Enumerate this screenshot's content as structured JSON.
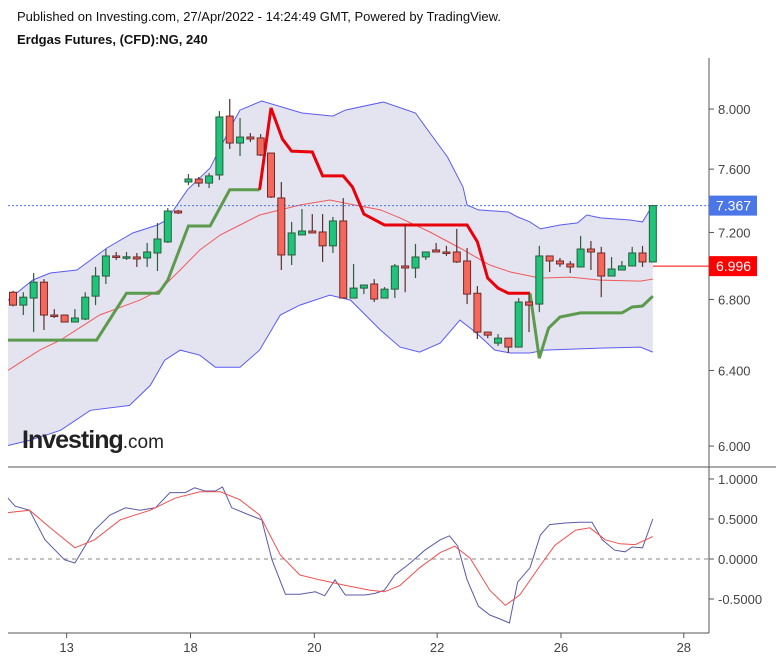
{
  "header": {
    "published": "Published on Investing.com, 27/Apr/2022 - 14:24:49 GMT, Powered by TradingView.",
    "title": "Erdgas Futures, (CFD):NG, 240"
  },
  "logo": {
    "main": "Investing",
    "suffix": ".com"
  },
  "colors": {
    "up": "#1ec47a",
    "down": "#f4675a",
    "band_fill": "#e4e4f0",
    "band_line": "#5b5bf0",
    "ma": "#f05a5a",
    "supertrend_up": "#5c9a4e",
    "supertrend_down": "#e8000b",
    "osc_main": "#5a5aa8",
    "osc_signal": "#f05050",
    "last_price": "#4a76e8",
    "marker_price": "#ff0000"
  },
  "chart_data": [
    {
      "type": "candlestick",
      "scale": "log",
      "ylim": [
        5.95,
        8.3
      ],
      "y_ticks": [
        "8.000",
        "7.600",
        "7.200",
        "6.800",
        "6.400",
        "6.000"
      ],
      "x_ticks": [
        "13",
        "18",
        "20",
        "22",
        "26",
        "28"
      ],
      "last_price_label": "7.367",
      "marker_price_label": "6.996",
      "last_price": 7.367,
      "marker_price": 6.996,
      "ohlc": [
        [
          6.842,
          6.85,
          6.76,
          6.767
        ],
        [
          6.767,
          6.842,
          6.71,
          6.813
        ],
        [
          6.808,
          6.955,
          6.613,
          6.901
        ],
        [
          6.901,
          6.919,
          6.625,
          6.71
        ],
        [
          6.71,
          6.744,
          6.693,
          6.708
        ],
        [
          6.71,
          6.712,
          6.67,
          6.67
        ],
        [
          6.67,
          6.744,
          6.668,
          6.693
        ],
        [
          6.687,
          6.842,
          6.681,
          6.813
        ],
        [
          6.819,
          6.991,
          6.767,
          6.937
        ],
        [
          6.937,
          7.099,
          6.89,
          7.057
        ],
        [
          7.057,
          7.081,
          7.033,
          7.051
        ],
        [
          7.051,
          7.081,
          7.033,
          7.052
        ],
        [
          7.051,
          7.075,
          6.991,
          7.039
        ],
        [
          7.045,
          7.136,
          6.991,
          7.081
        ],
        [
          7.075,
          7.259,
          6.967,
          7.16
        ],
        [
          7.142,
          7.352,
          7.136,
          7.333
        ],
        [
          7.333,
          7.34,
          7.314,
          7.321
        ],
        [
          7.517,
          7.568,
          7.497,
          7.536
        ],
        [
          7.536,
          7.549,
          7.485,
          7.51
        ],
        [
          7.51,
          7.575,
          7.478,
          7.556
        ],
        [
          7.562,
          7.986,
          7.53,
          7.946
        ],
        [
          7.952,
          8.069,
          7.732,
          7.771
        ],
        [
          7.771,
          7.939,
          7.686,
          7.811
        ],
        [
          7.811,
          7.838,
          7.778,
          7.798
        ],
        [
          7.805,
          7.831,
          7.686,
          7.692
        ],
        [
          7.705,
          7.705,
          7.415,
          7.421
        ],
        [
          7.415,
          7.517,
          6.973,
          7.063
        ],
        [
          7.063,
          7.265,
          7.003,
          7.197
        ],
        [
          7.185,
          7.346,
          7.185,
          7.209
        ],
        [
          7.209,
          7.314,
          7.197,
          7.197
        ],
        [
          7.203,
          7.314,
          7.021,
          7.118
        ],
        [
          7.118,
          7.296,
          7.075,
          7.271
        ],
        [
          7.271,
          7.415,
          6.808,
          6.808
        ],
        [
          6.808,
          7.009,
          6.808,
          6.866
        ],
        [
          6.866,
          6.884,
          6.831,
          6.884
        ],
        [
          6.89,
          6.919,
          6.785,
          6.802
        ],
        [
          6.808,
          6.872,
          6.808,
          6.86
        ],
        [
          6.86,
          7.009,
          6.808,
          6.997
        ],
        [
          6.997,
          7.252,
          6.842,
          6.985
        ],
        [
          6.985,
          7.13,
          6.925,
          7.051
        ],
        [
          7.051,
          7.081,
          7.033,
          7.081
        ],
        [
          7.093,
          7.136,
          7.081,
          7.081
        ],
        [
          7.081,
          7.118,
          7.057,
          7.075
        ],
        [
          7.081,
          7.222,
          7.015,
          7.021
        ],
        [
          7.027,
          7.105,
          6.773,
          6.831
        ],
        [
          6.836,
          6.878,
          6.574,
          6.613
        ],
        [
          6.613,
          6.615,
          6.579,
          6.596
        ],
        [
          6.551,
          6.602,
          6.535,
          6.579
        ],
        [
          6.579,
          6.58,
          6.496,
          6.529
        ],
        [
          6.529,
          6.808,
          6.529,
          6.785
        ],
        [
          6.785,
          6.836,
          6.613,
          6.767
        ],
        [
          6.773,
          7.118,
          6.727,
          7.057
        ],
        [
          7.057,
          7.06,
          6.961,
          7.027
        ],
        [
          7.027,
          7.045,
          6.991,
          7.009
        ],
        [
          7.009,
          7.027,
          6.955,
          6.991
        ],
        [
          6.991,
          7.179,
          6.991,
          7.099
        ],
        [
          7.099,
          7.148,
          6.973,
          7.081
        ],
        [
          7.075,
          7.112,
          6.813,
          6.937
        ],
        [
          6.937,
          7.051,
          6.937,
          6.979
        ],
        [
          6.973,
          7.027,
          6.973,
          6.997
        ],
        [
          6.997,
          7.112,
          6.997,
          7.075
        ],
        [
          7.075,
          7.118,
          6.991,
          7.021
        ],
        [
          7.021,
          7.367,
          7.021,
          7.367
        ]
      ],
      "bollinger_upper": [
        [
          -0.5,
          6.796
        ],
        [
          1.9,
          6.913
        ],
        [
          3.6,
          6.955
        ],
        [
          6.2,
          6.973
        ],
        [
          9.1,
          7.105
        ],
        [
          11.6,
          7.197
        ],
        [
          14.0,
          7.246
        ],
        [
          14.9,
          7.277
        ],
        [
          16.9,
          7.467
        ],
        [
          19.1,
          7.607
        ],
        [
          21.3,
          7.905
        ],
        [
          22.0,
          7.993
        ],
        [
          24.1,
          8.055
        ],
        [
          28.0,
          7.973
        ],
        [
          31.0,
          7.952
        ],
        [
          32.2,
          7.993
        ],
        [
          35.9,
          8.048
        ],
        [
          39.0,
          7.973
        ],
        [
          40.4,
          7.838
        ],
        [
          42.1,
          7.679
        ],
        [
          43.6,
          7.485
        ],
        [
          44.0,
          7.371
        ],
        [
          45.1,
          7.34
        ],
        [
          48.0,
          7.327
        ],
        [
          48.9,
          7.296
        ],
        [
          50.1,
          7.265
        ],
        [
          51.1,
          7.222
        ],
        [
          53.0,
          7.246
        ],
        [
          54.7,
          7.259
        ],
        [
          55.6,
          7.308
        ],
        [
          56.9,
          7.29
        ],
        [
          59.8,
          7.277
        ],
        [
          61.0,
          7.265
        ],
        [
          62.0,
          7.371
        ]
      ],
      "bollinger_lower": [
        [
          -0.5,
          6.003
        ],
        [
          1.6,
          6.029
        ],
        [
          4.6,
          6.081
        ],
        [
          7.5,
          6.186
        ],
        [
          11.3,
          6.212
        ],
        [
          13.3,
          6.319
        ],
        [
          14.7,
          6.456
        ],
        [
          16.2,
          6.512
        ],
        [
          18.1,
          6.484
        ],
        [
          19.6,
          6.418
        ],
        [
          22.0,
          6.418
        ],
        [
          23.9,
          6.512
        ],
        [
          25.9,
          6.71
        ],
        [
          27.8,
          6.767
        ],
        [
          30.7,
          6.825
        ],
        [
          32.7,
          6.796
        ],
        [
          35.6,
          6.625
        ],
        [
          37.5,
          6.529
        ],
        [
          39.4,
          6.501
        ],
        [
          41.4,
          6.551
        ],
        [
          43.3,
          6.681
        ],
        [
          44.8,
          6.613
        ],
        [
          46.7,
          6.512
        ],
        [
          48.2,
          6.496
        ],
        [
          50.1,
          6.496
        ],
        [
          51.5,
          6.512
        ],
        [
          56.9,
          6.523
        ],
        [
          60.8,
          6.529
        ],
        [
          62.0,
          6.501
        ]
      ],
      "bollinger_basis": [
        [
          -0.5,
          6.401
        ],
        [
          2.6,
          6.512
        ],
        [
          4.6,
          6.568
        ],
        [
          8.4,
          6.71
        ],
        [
          12.3,
          6.796
        ],
        [
          14.2,
          6.854
        ],
        [
          16.2,
          6.973
        ],
        [
          18.1,
          7.093
        ],
        [
          20.1,
          7.185
        ],
        [
          22.0,
          7.246
        ],
        [
          23.9,
          7.308
        ],
        [
          25.9,
          7.34
        ],
        [
          27.8,
          7.371
        ],
        [
          30.7,
          7.402
        ],
        [
          33.1,
          7.371
        ],
        [
          35.6,
          7.34
        ],
        [
          37.5,
          7.29
        ],
        [
          40.4,
          7.203
        ],
        [
          43.3,
          7.105
        ],
        [
          46.2,
          7.003
        ],
        [
          48.2,
          6.961
        ],
        [
          51.1,
          6.925
        ],
        [
          54.0,
          6.931
        ],
        [
          56.9,
          6.913
        ],
        [
          60.8,
          6.907
        ],
        [
          62.0,
          6.919
        ]
      ],
      "supertrend_up_1": [
        [
          -0.5,
          6.568
        ],
        [
          8.1,
          6.568
        ],
        [
          11.0,
          6.836
        ],
        [
          14.1,
          6.836
        ],
        [
          15.0,
          6.913
        ],
        [
          17.0,
          7.24
        ],
        [
          19.1,
          7.24
        ],
        [
          21.0,
          7.467
        ],
        [
          23.9,
          7.467
        ]
      ],
      "supertrend_down": [
        [
          23.9,
          7.467
        ],
        [
          25.0,
          8.007
        ],
        [
          26.1,
          7.798
        ],
        [
          27.0,
          7.718
        ],
        [
          29.0,
          7.712
        ],
        [
          30.0,
          7.556
        ],
        [
          32.0,
          7.556
        ],
        [
          32.9,
          7.485
        ],
        [
          34.0,
          7.314
        ],
        [
          36.0,
          7.246
        ],
        [
          44.0,
          7.246
        ],
        [
          45.0,
          7.142
        ],
        [
          46.0,
          6.925
        ],
        [
          47.0,
          6.866
        ],
        [
          48.0,
          6.836
        ],
        [
          50.1,
          6.836
        ]
      ],
      "supertrend_up_2": [
        [
          50.1,
          6.836
        ],
        [
          51.0,
          6.467
        ],
        [
          51.9,
          6.636
        ],
        [
          53.0,
          6.699
        ],
        [
          55.0,
          6.722
        ],
        [
          59.0,
          6.722
        ],
        [
          60.0,
          6.756
        ],
        [
          61.0,
          6.762
        ],
        [
          62.0,
          6.819
        ]
      ]
    },
    {
      "type": "line",
      "ylim": [
        -1.0,
        1.1
      ],
      "y_ticks": [
        "1.0000",
        "0.5000",
        "0.0000",
        "-0.5000"
      ],
      "zero_line": true,
      "series": [
        {
          "points": [
            [
              -0.5,
              0.76
            ],
            [
              0.2,
              0.66
            ],
            [
              1.6,
              0.61
            ],
            [
              3.1,
              0.24
            ],
            [
              5.0,
              -0.01
            ],
            [
              6.0,
              -0.05
            ],
            [
              7.9,
              0.36
            ],
            [
              9.4,
              0.55
            ],
            [
              10.9,
              0.64
            ],
            [
              12.3,
              0.61
            ],
            [
              13.8,
              0.64
            ],
            [
              15.2,
              0.83
            ],
            [
              16.7,
              0.83
            ],
            [
              17.6,
              0.89
            ],
            [
              18.6,
              0.85
            ],
            [
              19.6,
              0.85
            ],
            [
              20.3,
              0.9
            ],
            [
              21.2,
              0.64
            ],
            [
              22.9,
              0.55
            ],
            [
              24.1,
              0.49
            ],
            [
              25.1,
              -0.01
            ],
            [
              26.4,
              -0.44
            ],
            [
              27.8,
              -0.44
            ],
            [
              29.3,
              -0.41
            ],
            [
              30.2,
              -0.46
            ],
            [
              31.2,
              -0.26
            ],
            [
              32.2,
              -0.45
            ],
            [
              34.1,
              -0.45
            ],
            [
              35.1,
              -0.43
            ],
            [
              36.0,
              -0.39
            ],
            [
              37.0,
              -0.2
            ],
            [
              38.5,
              -0.05
            ],
            [
              39.9,
              0.11
            ],
            [
              41.4,
              0.24
            ],
            [
              42.3,
              0.29
            ],
            [
              43.1,
              0.16
            ],
            [
              44.0,
              -0.26
            ],
            [
              45.1,
              -0.59
            ],
            [
              46.2,
              -0.7
            ],
            [
              47.2,
              -0.75
            ],
            [
              48.1,
              -0.8
            ],
            [
              48.9,
              -0.29
            ],
            [
              50.1,
              -0.11
            ],
            [
              51.1,
              0.3
            ],
            [
              52.0,
              0.43
            ],
            [
              53.5,
              0.45
            ],
            [
              54.9,
              0.46
            ],
            [
              56.1,
              0.46
            ],
            [
              57.1,
              0.24
            ],
            [
              58.3,
              0.11
            ],
            [
              59.3,
              0.09
            ],
            [
              60.0,
              0.15
            ],
            [
              61.0,
              0.14
            ],
            [
              62.0,
              0.5
            ]
          ]
        },
        {
          "points": [
            [
              -0.5,
              0.58
            ],
            [
              1.6,
              0.61
            ],
            [
              3.6,
              0.39
            ],
            [
              6.0,
              0.14
            ],
            [
              7.9,
              0.24
            ],
            [
              10.4,
              0.49
            ],
            [
              13.3,
              0.61
            ],
            [
              15.7,
              0.76
            ],
            [
              18.1,
              0.84
            ],
            [
              20.1,
              0.84
            ],
            [
              22.0,
              0.74
            ],
            [
              23.9,
              0.55
            ],
            [
              25.9,
              0.05
            ],
            [
              27.8,
              -0.2
            ],
            [
              29.7,
              -0.26
            ],
            [
              32.2,
              -0.33
            ],
            [
              34.6,
              -0.39
            ],
            [
              36.0,
              -0.41
            ],
            [
              37.5,
              -0.33
            ],
            [
              39.4,
              -0.11
            ],
            [
              41.4,
              0.08
            ],
            [
              42.8,
              0.16
            ],
            [
              44.3,
              0.01
            ],
            [
              46.2,
              -0.39
            ],
            [
              47.7,
              -0.58
            ],
            [
              49.1,
              -0.45
            ],
            [
              51.1,
              -0.08
            ],
            [
              52.5,
              0.17
            ],
            [
              54.5,
              0.36
            ],
            [
              55.9,
              0.39
            ],
            [
              57.4,
              0.24
            ],
            [
              58.8,
              0.19
            ],
            [
              60.3,
              0.18
            ],
            [
              62.0,
              0.28
            ]
          ]
        }
      ]
    }
  ]
}
